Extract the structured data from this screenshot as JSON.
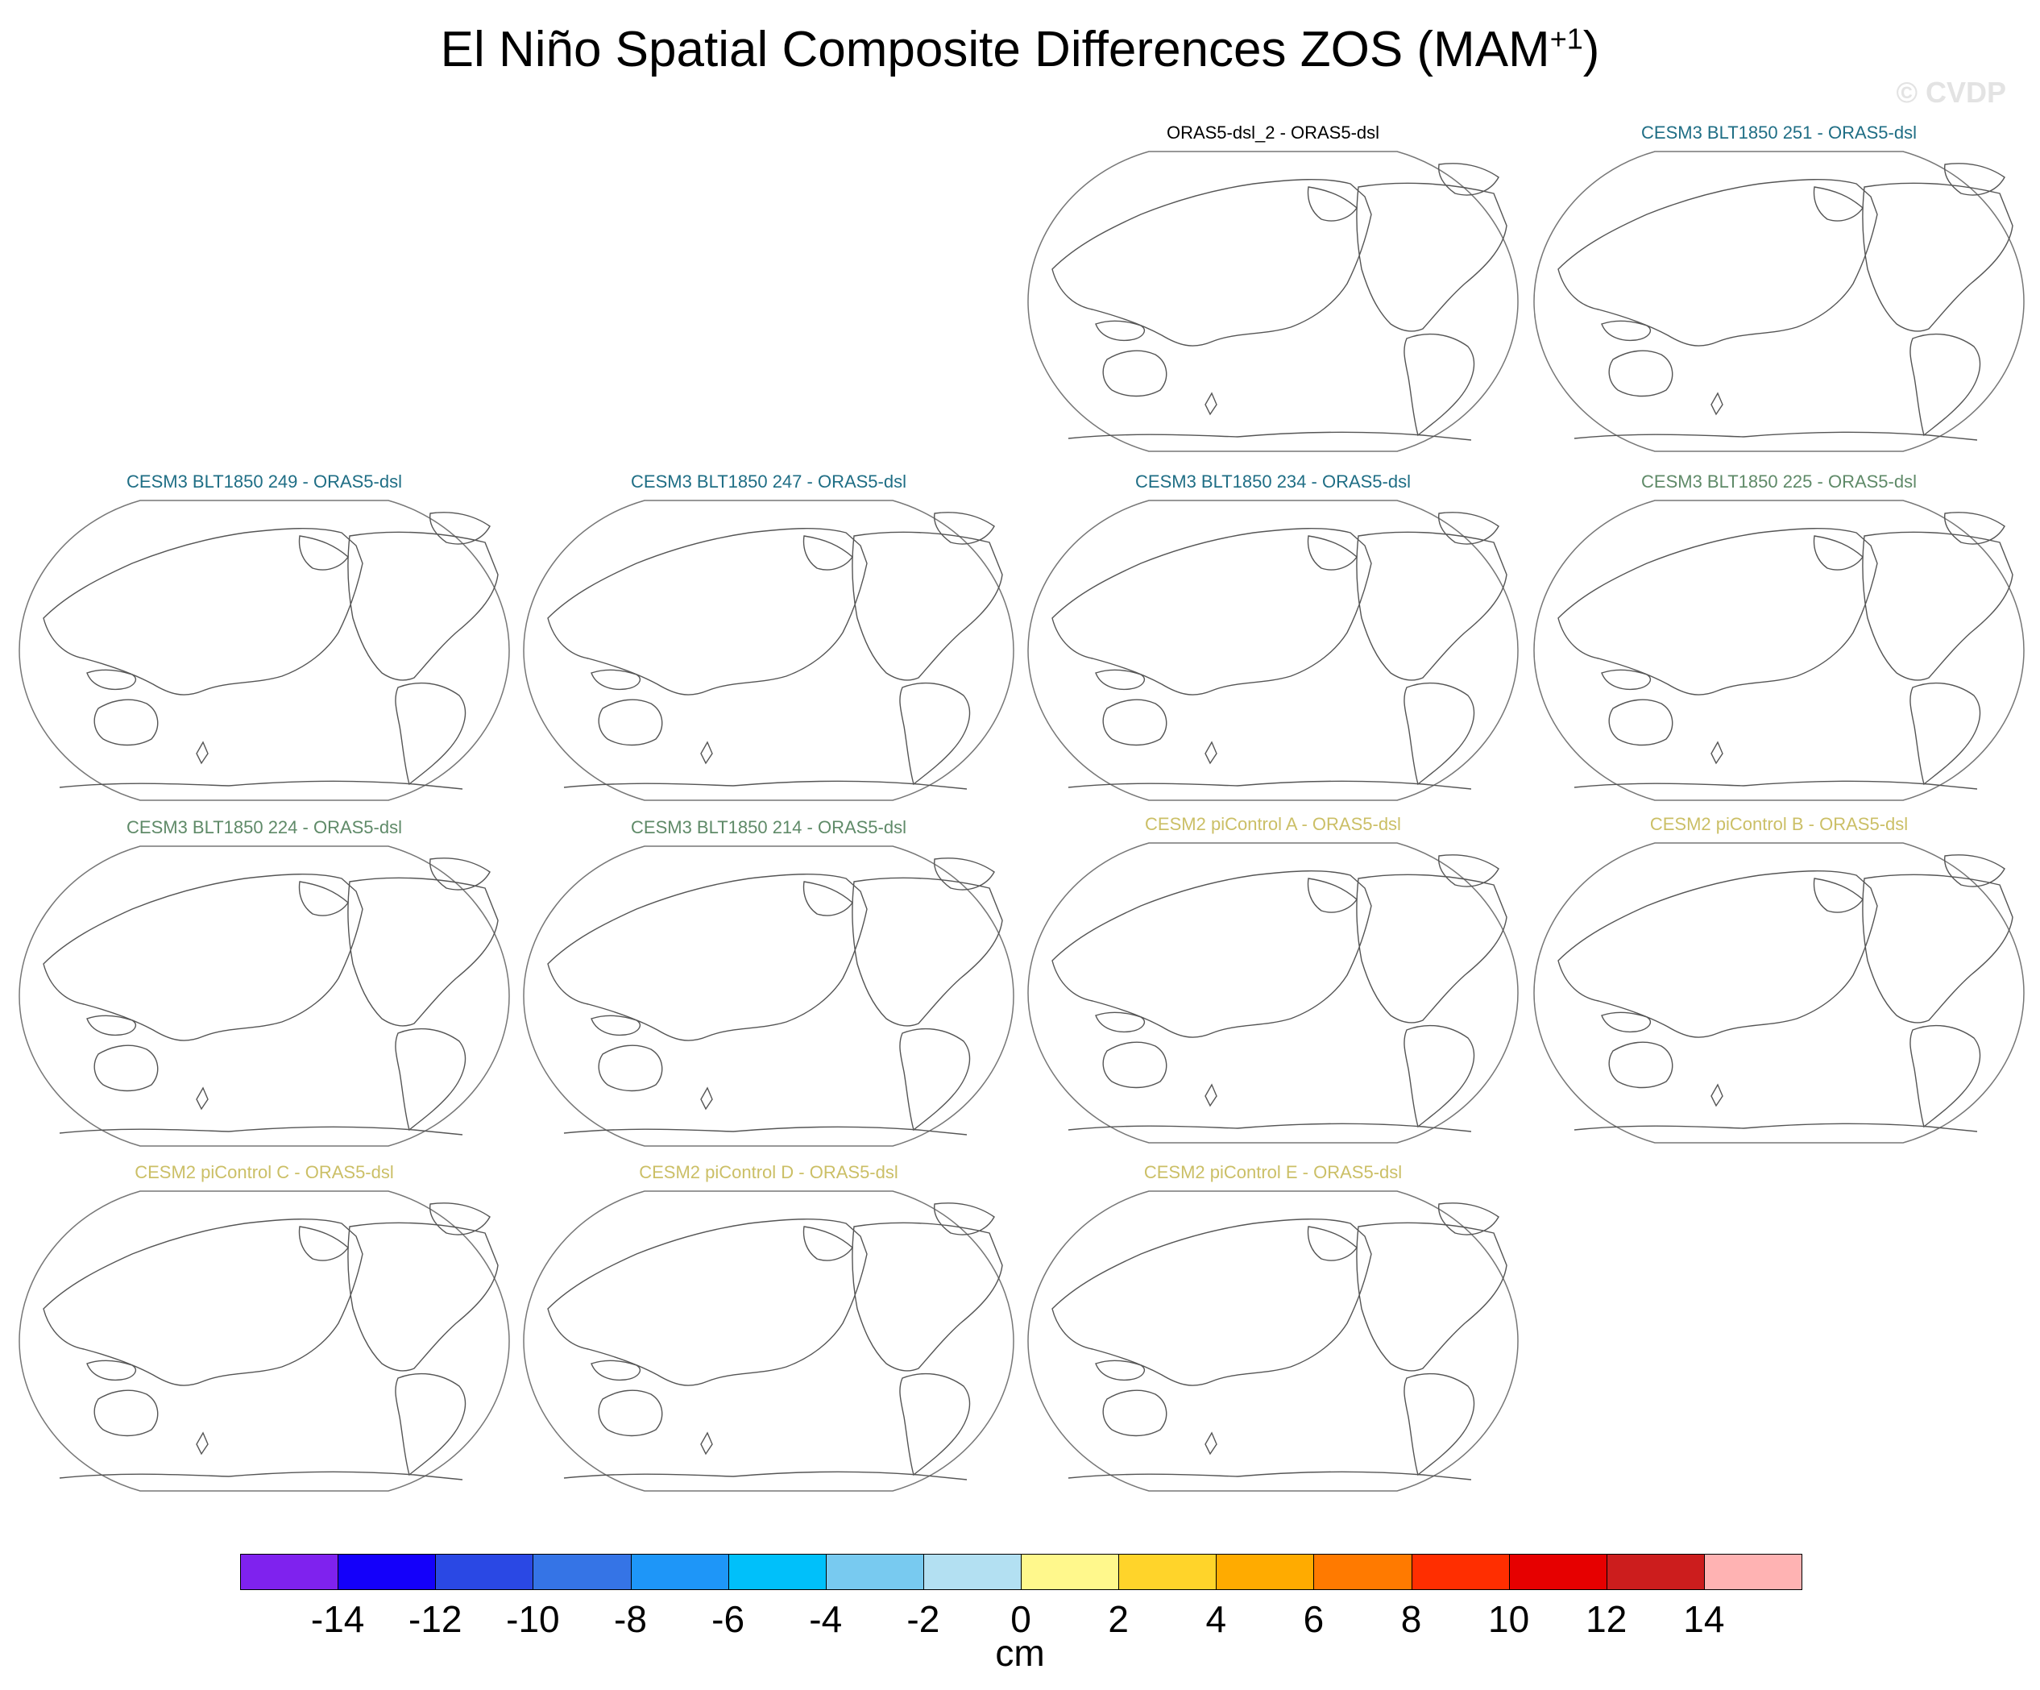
{
  "title": "El Niño Spatial Composite Differences ZOS (MAM",
  "title_superscript": "+1",
  "title_close": ")",
  "watermark": "© CVDP",
  "chart_data": {
    "type": "map",
    "variable": "ZOS",
    "season": "MAM+1",
    "panels": [
      {
        "label": "ORAS5-dsl_2 - ORAS5-dsl",
        "color": "#000000"
      },
      {
        "label": "CESM3 BLT1850 251 - ORAS5-dsl",
        "color": "#1f6e85"
      },
      {
        "label": "CESM3 BLT1850 249 - ORAS5-dsl",
        "color": "#1f6e85"
      },
      {
        "label": "CESM3 BLT1850 247 - ORAS5-dsl",
        "color": "#1f6e85"
      },
      {
        "label": "CESM3 BLT1850 234 - ORAS5-dsl",
        "color": "#1f6e85"
      },
      {
        "label": "CESM3 BLT1850 225 - ORAS5-dsl",
        "color": "#5f8a68"
      },
      {
        "label": "CESM3 BLT1850 224 - ORAS5-dsl",
        "color": "#5f8a68"
      },
      {
        "label": "CESM3 BLT1850 214 - ORAS5-dsl",
        "color": "#5f8a68"
      },
      {
        "label": "CESM2 piControl A - ORAS5-dsl",
        "color": "#cbbf66"
      },
      {
        "label": "CESM2 piControl B - ORAS5-dsl",
        "color": "#cbbf66"
      },
      {
        "label": "CESM2 piControl C - ORAS5-dsl",
        "color": "#cbbf66"
      },
      {
        "label": "CESM2 piControl D - ORAS5-dsl",
        "color": "#cbbf66"
      },
      {
        "label": "CESM2 piControl E - ORAS5-dsl",
        "color": "#cbbf66"
      }
    ],
    "colorbar": {
      "units": "cm",
      "tick_labels": [
        "-14",
        "-12",
        "-10",
        "-8",
        "-6",
        "-4",
        "-2",
        "0",
        "2",
        "4",
        "6",
        "8",
        "10",
        "12",
        "14"
      ],
      "colors": [
        "#7f22ee",
        "#1400fa",
        "#2a48e4",
        "#3574e6",
        "#1e96f8",
        "#00c0fa",
        "#78caf0",
        "#b3e0f2",
        "#fff88c",
        "#ffd42a",
        "#ffab00",
        "#ff7a00",
        "#ff2e00",
        "#e60000",
        "#cc1d1d",
        "#ffb3b3"
      ]
    }
  }
}
